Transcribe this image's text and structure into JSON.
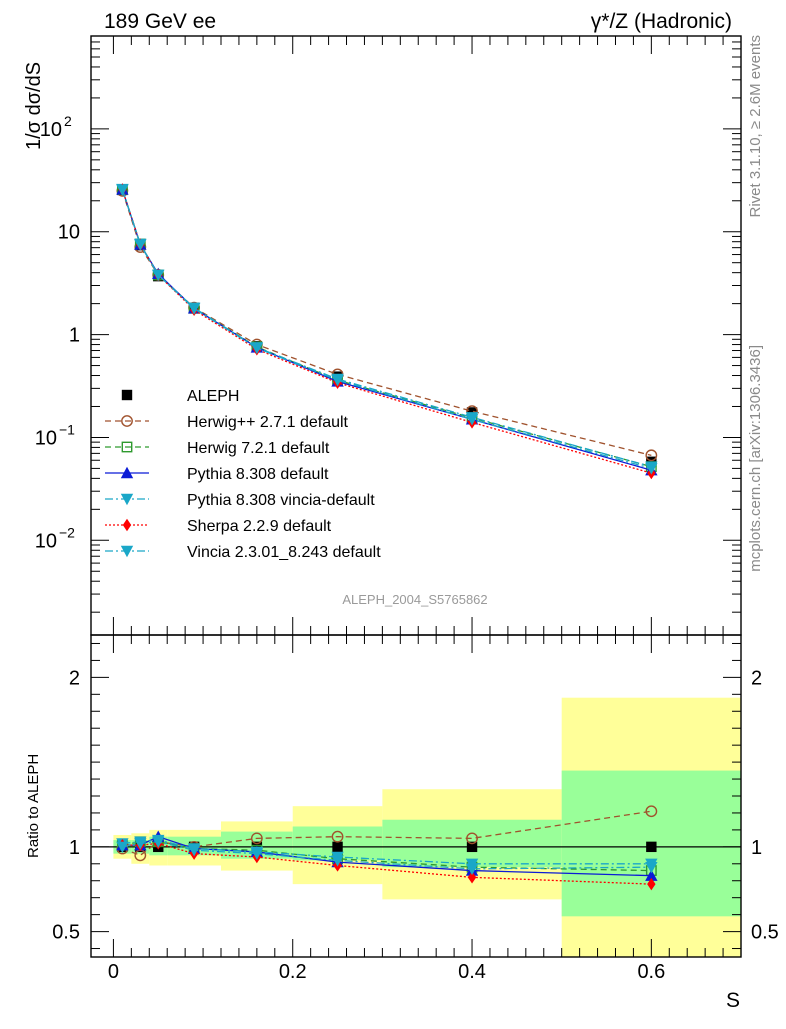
{
  "header": {
    "left_title": "189 GeV ee",
    "right_title": "γ*/Z (Hadronic)"
  },
  "side_labels": {
    "rivet": "Rivet 3.1.10, ≥ 2.6M events",
    "mcplots": "mcplots.cern.ch [arXiv:1306.3436]"
  },
  "analysis_label": "ALEPH_2004_S5765862",
  "colors": {
    "data": "#000000",
    "herwigpp": "#a0522d",
    "herwig7": "#2e9a2e",
    "pythia": "#0b1bd6",
    "pythia_vincia": "#1aa7c8",
    "sherpa": "#ff0000",
    "vincia": "#1aa7c8",
    "band_inner": "#99ff99",
    "band_outer": "#ffff99"
  },
  "chart_data": [
    {
      "type": "line",
      "panel": "main",
      "ylabel": "1/σ  dσ/dS",
      "ylog": true,
      "ylim": [
        0.0012,
        800
      ],
      "xlim": [
        -0.025,
        0.7
      ],
      "yticks": [
        {
          "v": 0.01,
          "base": "10",
          "exp": "−2"
        },
        {
          "v": 0.1,
          "base": "10",
          "exp": "−1"
        },
        {
          "v": 1,
          "base": "1",
          "exp": ""
        },
        {
          "v": 10,
          "base": "10",
          "exp": ""
        },
        {
          "v": 100,
          "base": "10",
          "exp": "2"
        }
      ],
      "x": [
        0.01,
        0.03,
        0.05,
        0.09,
        0.16,
        0.25,
        0.4,
        0.6
      ],
      "series": [
        {
          "name": "ALEPH",
          "key": "data",
          "marker": "square-filled",
          "dash": "",
          "values": [
            25.5,
            7.4,
            3.7,
            1.82,
            0.77,
            0.39,
            0.175,
            0.058
          ]
        },
        {
          "name": "Herwig++ 2.7.1 default",
          "key": "herwigpp",
          "marker": "circle-open",
          "dash": "6,4",
          "values": [
            25.0,
            7.1,
            3.8,
            1.83,
            0.8,
            0.41,
            0.18,
            0.067
          ]
        },
        {
          "name": "Herwig 7.2.1 default",
          "key": "herwig7",
          "marker": "square-open",
          "dash": "6,4",
          "values": [
            25.8,
            7.6,
            3.8,
            1.8,
            0.76,
            0.36,
            0.155,
            0.052
          ]
        },
        {
          "name": "Pythia 8.308 default",
          "key": "pythia",
          "marker": "triangle-up",
          "dash": "",
          "values": [
            25.8,
            7.5,
            3.9,
            1.8,
            0.75,
            0.35,
            0.15,
            0.048
          ]
        },
        {
          "name": "Pythia 8.308 vincia-default",
          "key": "pythia_vincia",
          "marker": "triangle-down",
          "dash": "8,3,2,3",
          "values": [
            26.0,
            7.6,
            3.8,
            1.82,
            0.75,
            0.37,
            0.157,
            0.052
          ]
        },
        {
          "name": "Sherpa 2.2.9 default",
          "key": "sherpa",
          "marker": "diamond",
          "dash": "2,2",
          "values": [
            25.8,
            7.5,
            3.8,
            1.74,
            0.72,
            0.34,
            0.14,
            0.045
          ]
        },
        {
          "name": "Vincia 2.3.01_8.243 default",
          "key": "vincia",
          "marker": "triangle-down",
          "dash": "8,3,2,3",
          "values": [
            25.6,
            7.5,
            3.8,
            1.79,
            0.74,
            0.36,
            0.15,
            0.05
          ]
        }
      ]
    },
    {
      "type": "line",
      "panel": "ratio",
      "ylabel": "Ratio to ALEPH",
      "xlabel": "S",
      "ylim": [
        0.35,
        2.25
      ],
      "xlim": [
        -0.025,
        0.7
      ],
      "yticks": [
        0.5,
        1,
        2
      ],
      "xticks": [
        0,
        0.2,
        0.4,
        0.6
      ],
      "bins": [
        [
          0.0,
          0.02
        ],
        [
          0.02,
          0.04
        ],
        [
          0.04,
          0.06
        ],
        [
          0.06,
          0.12
        ],
        [
          0.12,
          0.2
        ],
        [
          0.2,
          0.3
        ],
        [
          0.3,
          0.5
        ],
        [
          0.5,
          0.7
        ]
      ],
      "band_inner": [
        [
          0.96,
          1.04
        ],
        [
          0.96,
          1.04
        ],
        [
          0.95,
          1.06
        ],
        [
          0.95,
          1.06
        ],
        [
          0.93,
          1.09
        ],
        [
          0.92,
          1.12
        ],
        [
          0.88,
          1.16
        ],
        [
          0.59,
          1.45
        ]
      ],
      "band_outer": [
        [
          0.93,
          1.07
        ],
        [
          0.9,
          1.08
        ],
        [
          0.89,
          1.1
        ],
        [
          0.89,
          1.1
        ],
        [
          0.86,
          1.15
        ],
        [
          0.78,
          1.24
        ],
        [
          0.69,
          1.34
        ],
        [
          0.3,
          1.88
        ]
      ],
      "x": [
        0.01,
        0.03,
        0.05,
        0.09,
        0.16,
        0.25,
        0.4,
        0.6
      ],
      "series": [
        {
          "name": "Herwig++ 2.7.1 default",
          "key": "herwigpp",
          "marker": "circle-open",
          "dash": "6,4",
          "values": [
            0.99,
            0.95,
            1.03,
            1.0,
            1.05,
            1.06,
            1.05,
            1.21
          ]
        },
        {
          "name": "Herwig 7.2.1 default",
          "key": "herwig7",
          "marker": "square-open",
          "dash": "6,4",
          "values": [
            1.01,
            1.03,
            1.03,
            0.99,
            0.98,
            0.93,
            0.88,
            0.86
          ]
        },
        {
          "name": "Pythia 8.308 default",
          "key": "pythia",
          "marker": "triangle-up",
          "dash": "",
          "values": [
            1.01,
            1.01,
            1.06,
            0.99,
            0.97,
            0.91,
            0.86,
            0.83
          ]
        },
        {
          "name": "Pythia 8.308 vincia-default",
          "key": "pythia_vincia",
          "marker": "triangle-down",
          "dash": "8,3,2,3",
          "values": [
            1.02,
            1.03,
            1.04,
            0.99,
            0.97,
            0.94,
            0.9,
            0.9
          ]
        },
        {
          "name": "Sherpa 2.2.9 default",
          "key": "sherpa",
          "marker": "diamond",
          "dash": "2,2",
          "values": [
            1.01,
            1.01,
            1.02,
            0.96,
            0.94,
            0.89,
            0.82,
            0.78
          ]
        },
        {
          "name": "Vincia 2.3.01_8.243 default",
          "key": "vincia",
          "marker": "triangle-down",
          "dash": "8,3,2,3",
          "values": [
            1.0,
            1.02,
            1.03,
            0.98,
            0.96,
            0.92,
            0.87,
            0.88
          ]
        }
      ]
    }
  ]
}
